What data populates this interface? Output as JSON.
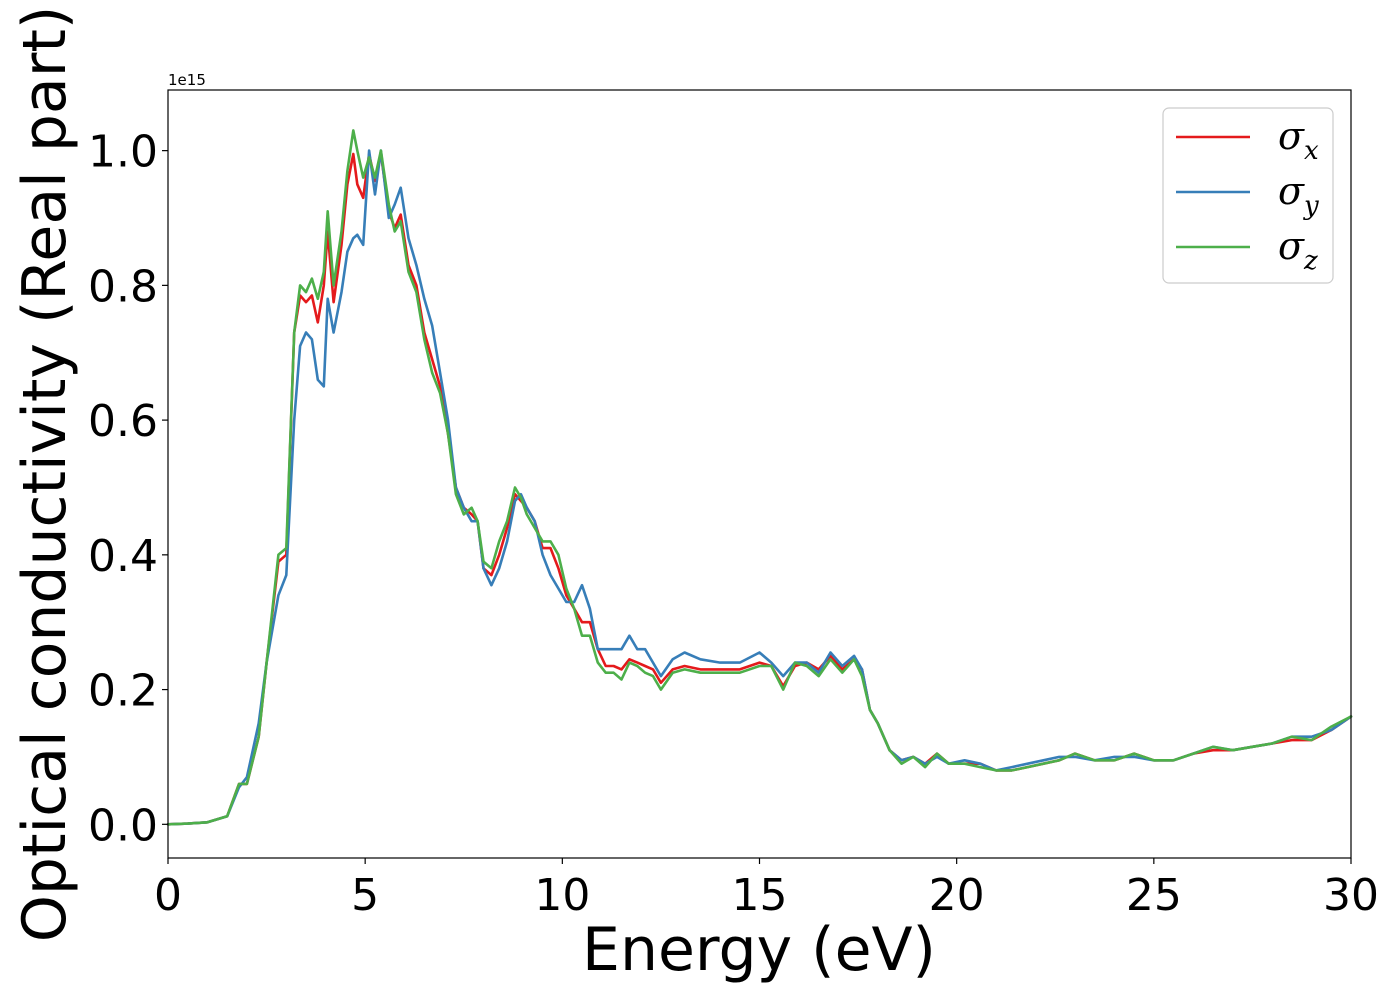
{
  "chart_data": {
    "type": "line",
    "xlabel": "Energy (eV)",
    "ylabel": "Optical conductivity (Real part)",
    "y_offset_text": "1e15",
    "xlim": [
      0,
      30
    ],
    "ylim": [
      -0.05,
      1.09
    ],
    "x_ticks": [
      0,
      5,
      10,
      15,
      20,
      25,
      30
    ],
    "x_tick_labels": [
      "0",
      "5",
      "10",
      "15",
      "20",
      "25",
      "30"
    ],
    "y_ticks": [
      0.0,
      0.2,
      0.4,
      0.6,
      0.8,
      1.0
    ],
    "y_tick_labels": [
      "0.0",
      "0.2",
      "0.4",
      "0.6",
      "0.8",
      "1.0"
    ],
    "grid": false,
    "legend_position": "top-right",
    "series": [
      {
        "name": "σ_x",
        "legend_base": "σ",
        "legend_sub": "x",
        "color": "#e41a1c",
        "x": [
          0,
          0.5,
          1,
          1.5,
          1.8,
          2,
          2.3,
          2.5,
          2.8,
          3.0,
          3.2,
          3.35,
          3.5,
          3.65,
          3.8,
          3.95,
          4.05,
          4.2,
          4.4,
          4.55,
          4.7,
          4.8,
          4.95,
          5.1,
          5.25,
          5.4,
          5.6,
          5.75,
          5.9,
          6.1,
          6.3,
          6.5,
          6.7,
          6.9,
          7.1,
          7.3,
          7.5,
          7.7,
          7.85,
          8.0,
          8.2,
          8.4,
          8.6,
          8.8,
          8.95,
          9.1,
          9.3,
          9.5,
          9.7,
          9.9,
          10.1,
          10.3,
          10.5,
          10.7,
          10.9,
          11.1,
          11.3,
          11.5,
          11.7,
          11.9,
          12.1,
          12.3,
          12.5,
          12.8,
          13.1,
          13.5,
          14.0,
          14.5,
          15.0,
          15.3,
          15.6,
          15.9,
          16.2,
          16.5,
          16.8,
          17.1,
          17.4,
          17.6,
          17.8,
          18.0,
          18.3,
          18.6,
          18.9,
          19.2,
          19.5,
          19.8,
          20.2,
          20.6,
          21.0,
          21.4,
          21.8,
          22.2,
          22.6,
          23.0,
          23.5,
          24.0,
          24.5,
          25.0,
          25.5,
          26.0,
          26.5,
          27.0,
          27.5,
          28.0,
          28.5,
          29.0,
          29.5,
          30.0
        ],
        "y": [
          0.0,
          0.001,
          0.003,
          0.012,
          0.06,
          0.06,
          0.13,
          0.24,
          0.39,
          0.4,
          0.73,
          0.785,
          0.775,
          0.785,
          0.745,
          0.8,
          0.88,
          0.775,
          0.86,
          0.95,
          0.995,
          0.95,
          0.93,
          0.995,
          0.955,
          0.995,
          0.91,
          0.885,
          0.905,
          0.83,
          0.8,
          0.73,
          0.69,
          0.65,
          0.58,
          0.5,
          0.47,
          0.46,
          0.45,
          0.38,
          0.37,
          0.4,
          0.44,
          0.49,
          0.48,
          0.47,
          0.45,
          0.41,
          0.41,
          0.38,
          0.34,
          0.32,
          0.3,
          0.3,
          0.26,
          0.235,
          0.235,
          0.23,
          0.245,
          0.24,
          0.235,
          0.23,
          0.21,
          0.23,
          0.235,
          0.23,
          0.23,
          0.23,
          0.24,
          0.235,
          0.205,
          0.235,
          0.24,
          0.23,
          0.25,
          0.23,
          0.245,
          0.23,
          0.17,
          0.15,
          0.11,
          0.095,
          0.1,
          0.09,
          0.105,
          0.09,
          0.09,
          0.09,
          0.08,
          0.08,
          0.085,
          0.09,
          0.095,
          0.105,
          0.095,
          0.095,
          0.105,
          0.095,
          0.095,
          0.105,
          0.11,
          0.11,
          0.115,
          0.12,
          0.125,
          0.125,
          0.14,
          0.16
        ]
      },
      {
        "name": "σ_y",
        "legend_base": "σ",
        "legend_sub": "y",
        "color": "#377eb8",
        "x": [
          0,
          0.5,
          1,
          1.5,
          1.8,
          2,
          2.3,
          2.5,
          2.8,
          3.0,
          3.2,
          3.35,
          3.5,
          3.65,
          3.8,
          3.95,
          4.05,
          4.2,
          4.4,
          4.55,
          4.7,
          4.8,
          4.95,
          5.1,
          5.25,
          5.4,
          5.6,
          5.75,
          5.9,
          6.1,
          6.3,
          6.5,
          6.7,
          6.9,
          7.1,
          7.3,
          7.5,
          7.7,
          7.85,
          8.0,
          8.2,
          8.4,
          8.6,
          8.8,
          8.95,
          9.1,
          9.3,
          9.5,
          9.7,
          9.9,
          10.1,
          10.3,
          10.5,
          10.7,
          10.9,
          11.1,
          11.3,
          11.5,
          11.7,
          11.9,
          12.1,
          12.3,
          12.5,
          12.8,
          13.1,
          13.5,
          14.0,
          14.5,
          15.0,
          15.3,
          15.6,
          15.9,
          16.2,
          16.5,
          16.8,
          17.1,
          17.4,
          17.6,
          17.8,
          18.0,
          18.3,
          18.6,
          18.9,
          19.2,
          19.5,
          19.8,
          20.2,
          20.6,
          21.0,
          21.4,
          21.8,
          22.2,
          22.6,
          23.0,
          23.5,
          24.0,
          24.5,
          25.0,
          25.5,
          26.0,
          26.5,
          27.0,
          27.5,
          28.0,
          28.5,
          29.0,
          29.5,
          30.0
        ],
        "y": [
          0.0,
          0.001,
          0.003,
          0.012,
          0.055,
          0.07,
          0.15,
          0.24,
          0.34,
          0.37,
          0.6,
          0.71,
          0.73,
          0.72,
          0.66,
          0.65,
          0.78,
          0.73,
          0.79,
          0.85,
          0.87,
          0.875,
          0.86,
          1.0,
          0.935,
          1.0,
          0.9,
          0.92,
          0.945,
          0.87,
          0.83,
          0.78,
          0.74,
          0.67,
          0.6,
          0.5,
          0.47,
          0.45,
          0.45,
          0.38,
          0.355,
          0.38,
          0.42,
          0.48,
          0.49,
          0.47,
          0.45,
          0.4,
          0.37,
          0.35,
          0.33,
          0.33,
          0.355,
          0.32,
          0.26,
          0.26,
          0.26,
          0.26,
          0.28,
          0.26,
          0.26,
          0.24,
          0.22,
          0.245,
          0.255,
          0.245,
          0.24,
          0.24,
          0.255,
          0.24,
          0.22,
          0.24,
          0.24,
          0.225,
          0.255,
          0.235,
          0.25,
          0.23,
          0.17,
          0.15,
          0.11,
          0.095,
          0.1,
          0.09,
          0.1,
          0.09,
          0.095,
          0.09,
          0.08,
          0.085,
          0.09,
          0.095,
          0.1,
          0.1,
          0.095,
          0.1,
          0.1,
          0.095,
          0.095,
          0.105,
          0.115,
          0.11,
          0.115,
          0.12,
          0.13,
          0.13,
          0.14,
          0.16
        ]
      },
      {
        "name": "σ_z",
        "legend_base": "σ",
        "legend_sub": "z",
        "color": "#4daf4a",
        "x": [
          0,
          0.5,
          1,
          1.5,
          1.8,
          2,
          2.3,
          2.5,
          2.8,
          3.0,
          3.2,
          3.35,
          3.5,
          3.65,
          3.8,
          3.95,
          4.05,
          4.2,
          4.4,
          4.55,
          4.7,
          4.8,
          4.95,
          5.1,
          5.25,
          5.4,
          5.6,
          5.75,
          5.9,
          6.1,
          6.3,
          6.5,
          6.7,
          6.9,
          7.1,
          7.3,
          7.5,
          7.7,
          7.85,
          8.0,
          8.2,
          8.4,
          8.6,
          8.8,
          8.95,
          9.1,
          9.3,
          9.5,
          9.7,
          9.9,
          10.1,
          10.3,
          10.5,
          10.7,
          10.9,
          11.1,
          11.3,
          11.5,
          11.7,
          11.9,
          12.1,
          12.3,
          12.5,
          12.8,
          13.1,
          13.5,
          14.0,
          14.5,
          15.0,
          15.3,
          15.6,
          15.9,
          16.2,
          16.5,
          16.8,
          17.1,
          17.4,
          17.6,
          17.8,
          18.0,
          18.3,
          18.6,
          18.9,
          19.2,
          19.5,
          19.8,
          20.2,
          20.6,
          21.0,
          21.4,
          21.8,
          22.2,
          22.6,
          23.0,
          23.5,
          24.0,
          24.5,
          25.0,
          25.5,
          26.0,
          26.5,
          27.0,
          27.5,
          28.0,
          28.5,
          29.0,
          29.5,
          30.0
        ],
        "y": [
          0.0,
          0.001,
          0.003,
          0.012,
          0.06,
          0.06,
          0.13,
          0.24,
          0.4,
          0.41,
          0.73,
          0.8,
          0.79,
          0.81,
          0.78,
          0.82,
          0.91,
          0.8,
          0.88,
          0.97,
          1.03,
          1.0,
          0.96,
          0.99,
          0.96,
          1.0,
          0.92,
          0.88,
          0.895,
          0.82,
          0.79,
          0.72,
          0.67,
          0.64,
          0.58,
          0.49,
          0.46,
          0.47,
          0.45,
          0.39,
          0.38,
          0.42,
          0.45,
          0.5,
          0.485,
          0.46,
          0.44,
          0.42,
          0.42,
          0.4,
          0.35,
          0.32,
          0.28,
          0.28,
          0.24,
          0.225,
          0.225,
          0.215,
          0.24,
          0.235,
          0.225,
          0.22,
          0.2,
          0.225,
          0.23,
          0.225,
          0.225,
          0.225,
          0.235,
          0.235,
          0.2,
          0.24,
          0.235,
          0.22,
          0.245,
          0.225,
          0.245,
          0.22,
          0.17,
          0.15,
          0.11,
          0.09,
          0.1,
          0.085,
          0.105,
          0.09,
          0.09,
          0.085,
          0.08,
          0.08,
          0.085,
          0.09,
          0.095,
          0.105,
          0.095,
          0.095,
          0.105,
          0.095,
          0.095,
          0.105,
          0.115,
          0.11,
          0.115,
          0.12,
          0.13,
          0.125,
          0.145,
          0.16
        ]
      }
    ]
  }
}
